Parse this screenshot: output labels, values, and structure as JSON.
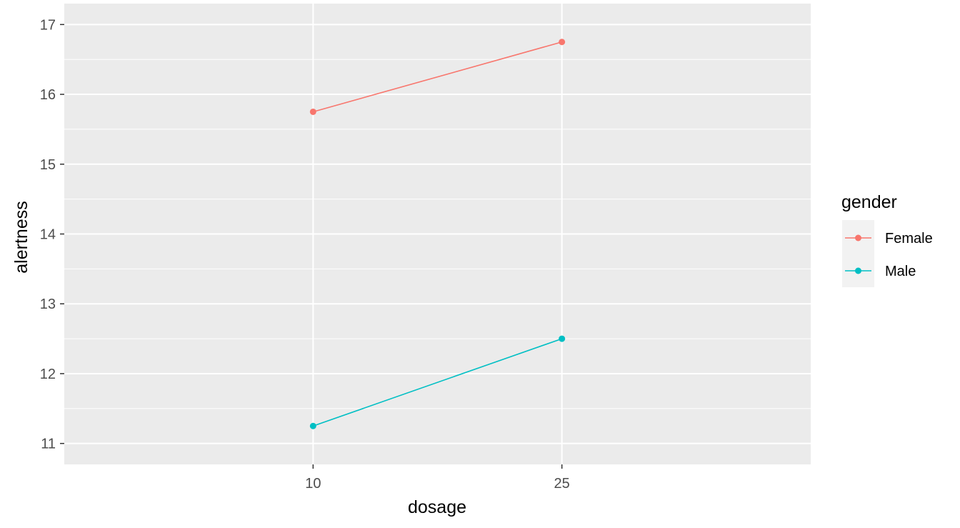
{
  "chart_data": {
    "type": "line",
    "xlabel": "dosage",
    "ylabel": "alertness",
    "categories": [
      "10",
      "25"
    ],
    "ylim": [
      11,
      17
    ],
    "yticks": [
      "11",
      "12",
      "13",
      "14",
      "15",
      "16",
      "17"
    ],
    "grid": true,
    "legend": {
      "title": "gender",
      "position": "right",
      "entries": [
        "Female",
        "Male"
      ]
    },
    "series": [
      {
        "name": "Female",
        "color": "#F8766D",
        "values": [
          15.75,
          16.75
        ]
      },
      {
        "name": "Male",
        "color": "#00BFC4",
        "values": [
          11.25,
          12.5
        ]
      }
    ]
  }
}
